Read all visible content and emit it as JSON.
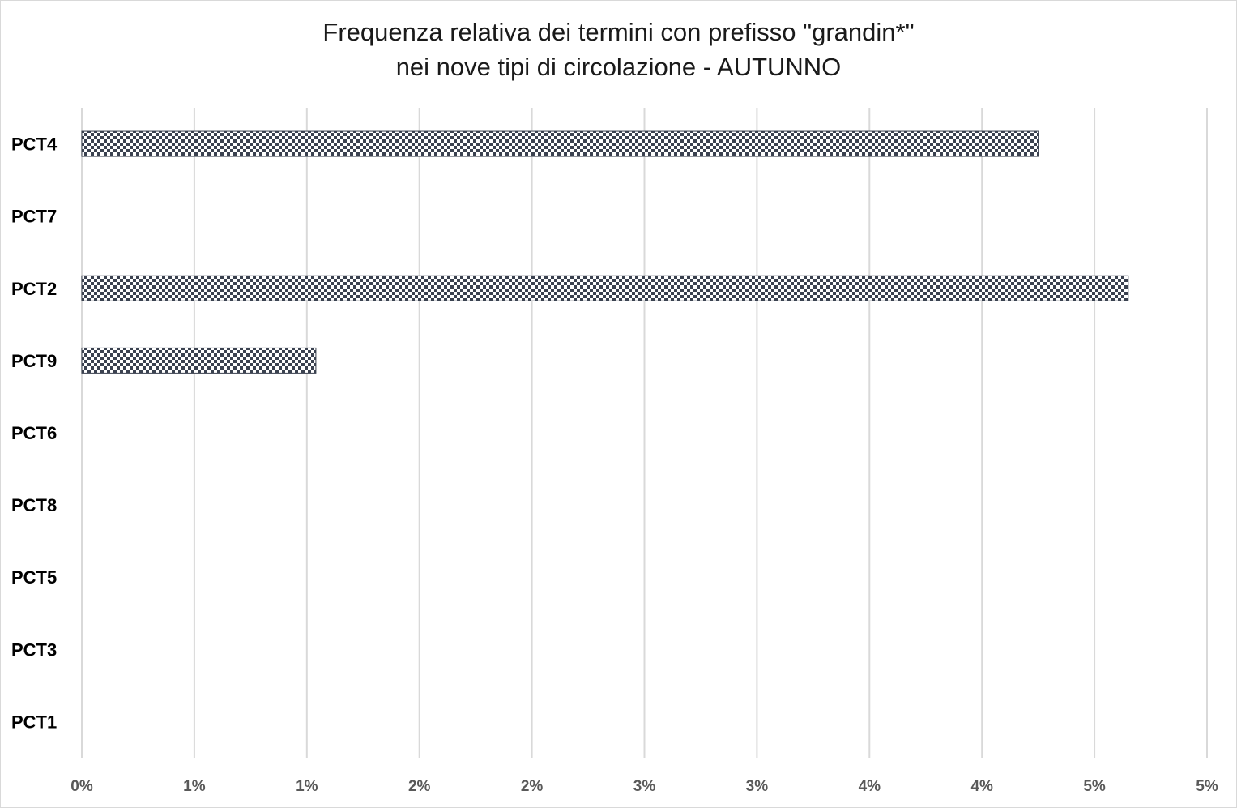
{
  "chart_data": {
    "type": "bar",
    "orientation": "horizontal",
    "title": "Frequenza relativa dei termini con prefisso \"grandin*\"",
    "subtitle": "nei nove tipi di circolazione - AUTUNNO",
    "categories": [
      "PCT4",
      "PCT7",
      "PCT2",
      "PCT9",
      "PCT6",
      "PCT8",
      "PCT5",
      "PCT3",
      "PCT1"
    ],
    "values": [
      4.25,
      0,
      4.65,
      1.04,
      0,
      0,
      0,
      0,
      0
    ],
    "value_unit": "%",
    "xlim": [
      0,
      5
    ],
    "x_tick_values": [
      0,
      0.5,
      1,
      1.5,
      2,
      2.5,
      3,
      3.5,
      4,
      4.5,
      5
    ],
    "x_tick_labels": [
      "0%",
      "1%",
      "1%",
      "2%",
      "2%",
      "3%",
      "3%",
      "4%",
      "4%",
      "5%",
      "5%"
    ],
    "xlabel": "",
    "ylabel": "",
    "grid": "vertical",
    "legend": "none",
    "bar_fill": "checker pattern",
    "colors": {
      "bar_dark": "#3b4250",
      "bar_light": "#ffffff",
      "grid": "#d9d9d9",
      "tick_text": "#595959"
    }
  }
}
